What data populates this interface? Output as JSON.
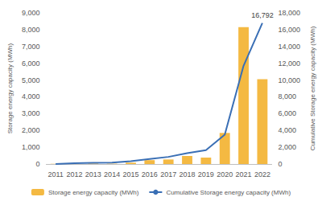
{
  "chart_data": {
    "type": "bar",
    "categories": [
      "2011",
      "2012",
      "2013",
      "2014",
      "2015",
      "2016",
      "2017",
      "2018",
      "2019",
      "2020",
      "2021",
      "2022"
    ],
    "series": [
      {
        "name": "Storage energy capacity (MWh)",
        "type": "bar",
        "color": "#f4b942",
        "values": [
          10,
          20,
          30,
          20,
          80,
          230,
          270,
          480,
          380,
          1850,
          8150,
          5050
        ]
      },
      {
        "name": "Cumulative Storage energy capacity (MWh)",
        "type": "line",
        "axis": "y2",
        "color": "#3a6fb5",
        "values": [
          10,
          100,
          150,
          170,
          330,
          600,
          850,
          1300,
          1650,
          3500,
          11700,
          16792
        ],
        "value_labels": [
          null,
          null,
          null,
          null,
          null,
          null,
          null,
          null,
          null,
          null,
          null,
          "16,792"
        ]
      }
    ],
    "y_label": "Storage energy capacity (MWh)",
    "y2_label": "Cumulative Storage energy capacity (MWh)",
    "ylim": [
      0,
      9000
    ],
    "yticks": [
      0,
      {
        "value": 1000,
        "label": "1,000"
      },
      {
        "value": 2000,
        "label": "2,000"
      },
      {
        "value": 3000,
        "label": "3,000"
      },
      {
        "value": 4000,
        "label": "4,000"
      },
      {
        "value": 5000,
        "label": "5,000"
      },
      {
        "value": 6000,
        "label": "6,000"
      },
      {
        "value": 7000,
        "label": "7,000"
      },
      {
        "value": 8000,
        "label": "8,000"
      },
      {
        "value": 9000,
        "label": "9,000"
      }
    ],
    "y2lim": [
      0,
      18000
    ],
    "y2ticks": [
      0,
      {
        "value": 2000,
        "label": "2,000"
      },
      {
        "value": 4000,
        "label": "4,000"
      },
      {
        "value": 6000,
        "label": "6,000"
      },
      {
        "value": 8000,
        "label": "8,000"
      },
      {
        "value": 10000,
        "label": "10,000"
      },
      {
        "value": 12000,
        "label": "12,000"
      },
      {
        "value": 14000,
        "label": "14,000"
      },
      {
        "value": 16000,
        "label": "16,000"
      },
      {
        "value": 18000,
        "label": "18,000"
      }
    ],
    "grid": false,
    "legend": "bottom"
  }
}
